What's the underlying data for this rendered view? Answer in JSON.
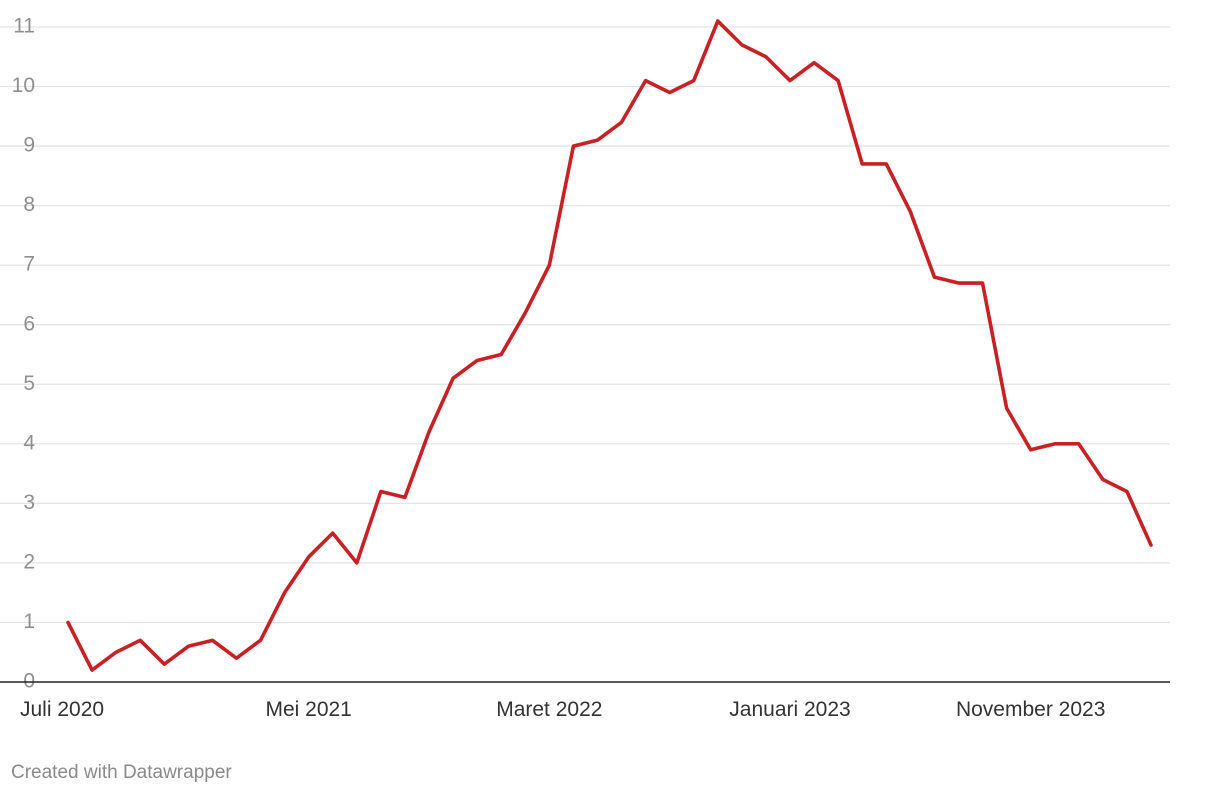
{
  "chart_data": {
    "type": "line",
    "title": "",
    "xlabel": "",
    "ylabel": "",
    "ylim": [
      0,
      11
    ],
    "yticks": [
      0,
      1,
      2,
      3,
      4,
      5,
      6,
      7,
      8,
      9,
      10,
      11
    ],
    "grid": true,
    "x_tick_labels": [
      {
        "label": "Juli 2020",
        "index": 0
      },
      {
        "label": "Mei 2021",
        "index": 10
      },
      {
        "label": "Maret 2022",
        "index": 20
      },
      {
        "label": "Januari 2023",
        "index": 30
      },
      {
        "label": "November 2023",
        "index": 40
      }
    ],
    "series": [
      {
        "color": "#c72125",
        "values": [
          1.0,
          0.2,
          0.5,
          0.7,
          0.3,
          0.6,
          0.7,
          0.4,
          0.7,
          1.5,
          2.1,
          2.5,
          2.0,
          3.2,
          3.1,
          4.2,
          5.1,
          5.4,
          5.5,
          6.2,
          7.0,
          9.0,
          9.1,
          9.4,
          10.1,
          9.9,
          10.1,
          11.1,
          10.7,
          10.5,
          10.1,
          10.4,
          10.1,
          8.7,
          8.7,
          7.9,
          6.8,
          6.7,
          6.7,
          4.6,
          3.9,
          4.0,
          4.0,
          3.4,
          3.2,
          2.3
        ]
      }
    ]
  },
  "credit": "Created with Datawrapper"
}
